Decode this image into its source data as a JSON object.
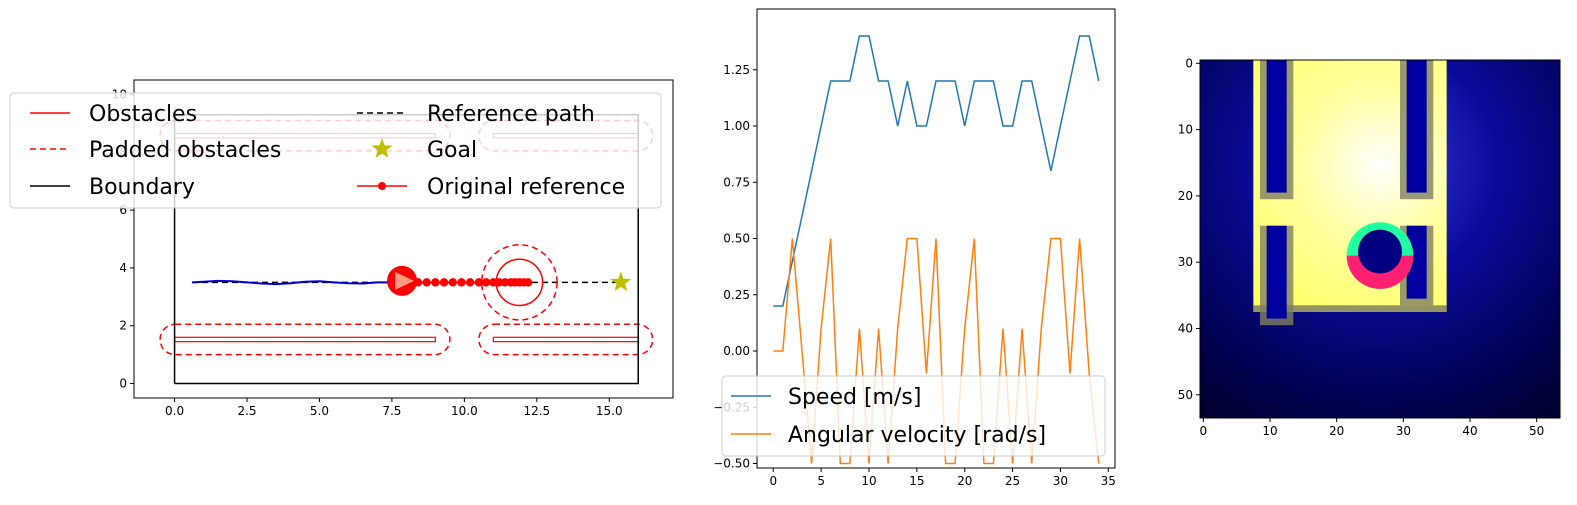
{
  "chart_data": [
    {
      "type": "line",
      "title": "",
      "xlim": [
        -1.4,
        17.2
      ],
      "ylim": [
        -0.5,
        10.5
      ],
      "x_ticks": [
        "0.0",
        "2.5",
        "5.0",
        "7.5",
        "10.0",
        "12.5",
        "15.0"
      ],
      "x_tick_values": [
        0,
        2.5,
        5,
        7.5,
        10,
        12.5,
        15
      ],
      "y_ticks": [
        "0",
        "2",
        "4",
        "6",
        "8",
        "10"
      ],
      "y_tick_values": [
        0,
        2,
        4,
        6,
        8,
        10
      ],
      "legend": {
        "placement": "top-center",
        "entries": [
          {
            "label": "Obstacles",
            "color": "#ff0000",
            "style": "solid"
          },
          {
            "label": "Padded obstacles",
            "color": "#ff0000",
            "style": "dashed"
          },
          {
            "label": "Boundary",
            "color": "#000000",
            "style": "solid"
          },
          {
            "label": "Reference path",
            "color": "#000000",
            "style": "dashed"
          },
          {
            "label": "Goal",
            "color": "#bfbf00",
            "style": "star"
          },
          {
            "label": "Original reference",
            "color": "#ff0000",
            "style": "line-dot"
          }
        ]
      },
      "boundary": {
        "x": [
          0,
          0,
          16,
          16,
          0
        ],
        "y": [
          0,
          9.3,
          9.3,
          0,
          0
        ],
        "color": "#000000"
      },
      "obstacles": [
        {
          "x0": 0,
          "x1": 9,
          "y0": 1.45,
          "y1": 1.6
        },
        {
          "x0": 11,
          "x1": 16,
          "y0": 1.45,
          "y1": 1.6
        },
        {
          "x0": 0,
          "x1": 9,
          "y0": 8.5,
          "y1": 8.65
        },
        {
          "x0": 11,
          "x1": 16,
          "y0": 8.5,
          "y1": 8.65
        }
      ],
      "padded_obstacles": [
        {
          "x0": -0.5,
          "x1": 9.5,
          "y0": 1.0,
          "y1": 2.05
        },
        {
          "x0": 10.5,
          "x1": 16.5,
          "y0": 1.0,
          "y1": 2.05
        },
        {
          "x0": -0.5,
          "x1": 9.5,
          "y0": 8.05,
          "y1": 9.1
        },
        {
          "x0": 10.5,
          "x1": 16.5,
          "y0": 8.05,
          "y1": 9.1
        }
      ],
      "reference_path": {
        "x": [
          0.6,
          15.5
        ],
        "y": [
          3.5,
          3.5
        ]
      },
      "goal": {
        "x": 15.4,
        "y": 3.5
      },
      "trajectory": {
        "color": "#0000cc",
        "x": [
          0.6,
          1.0,
          1.5,
          2.0,
          2.5,
          3.0,
          3.5,
          4.0,
          4.5,
          5.0,
          5.5,
          6.0,
          6.5,
          7.0,
          7.5
        ],
        "y": [
          3.5,
          3.52,
          3.55,
          3.54,
          3.5,
          3.46,
          3.44,
          3.47,
          3.52,
          3.54,
          3.5,
          3.47,
          3.46,
          3.5,
          3.5
        ]
      },
      "original_reference": {
        "x": [
          8.0,
          8.4,
          8.7,
          9.0,
          9.3,
          9.6,
          9.9,
          10.2,
          10.5,
          10.75,
          11.0,
          11.2,
          11.4,
          11.6,
          11.75,
          11.9,
          12.05,
          12.2
        ],
        "y": 3.5
      },
      "robot": {
        "x": 7.85,
        "y": 3.55,
        "radius": 0.5
      },
      "dynamic_obstacle": {
        "x": 11.9,
        "y": 3.5,
        "radius": 0.8,
        "padded_radius": 1.3
      }
    },
    {
      "type": "line",
      "title": "",
      "xlim": [
        -1.7,
        35.7
      ],
      "ylim": [
        -0.52,
        1.52
      ],
      "x_ticks": [
        "0",
        "5",
        "10",
        "15",
        "20",
        "25",
        "30",
        "35"
      ],
      "x_tick_values": [
        0,
        5,
        10,
        15,
        20,
        25,
        30,
        35
      ],
      "y_ticks": [
        "−0.50",
        "−0.25",
        "0.00",
        "0.25",
        "0.50",
        "0.75",
        "1.00",
        "1.25"
      ],
      "y_tick_values": [
        -0.5,
        -0.25,
        0,
        0.25,
        0.5,
        0.75,
        1.0,
        1.25
      ],
      "legend": {
        "placement": "lower-left"
      },
      "x": [
        0,
        1,
        2,
        3,
        4,
        5,
        6,
        7,
        8,
        9,
        10,
        11,
        12,
        13,
        14,
        15,
        16,
        17,
        18,
        19,
        20,
        21,
        22,
        23,
        24,
        25,
        26,
        27,
        28,
        29,
        30,
        31,
        32,
        33,
        34
      ],
      "series": [
        {
          "name": "Speed [m/s]",
          "color": "#1f77b4",
          "values": [
            0.2,
            0.2,
            0.4,
            0.6,
            0.8,
            1.0,
            1.2,
            1.2,
            1.2,
            1.4,
            1.4,
            1.2,
            1.2,
            1.0,
            1.2,
            1.0,
            1.0,
            1.2,
            1.2,
            1.2,
            1.0,
            1.2,
            1.2,
            1.2,
            1.0,
            1.0,
            1.2,
            1.2,
            1.0,
            0.8,
            1.0,
            1.2,
            1.4,
            1.4,
            1.2
          ]
        },
        {
          "name": "Angular velocity [rad/s]",
          "color": "#ff7f0e",
          "values": [
            0.0,
            0.0,
            0.5,
            0.0,
            -0.5,
            0.1,
            0.5,
            -0.5,
            -0.5,
            0.1,
            -0.5,
            0.1,
            -0.5,
            0.1,
            0.5,
            0.5,
            -0.1,
            0.5,
            -0.5,
            -0.5,
            0.1,
            0.5,
            -0.5,
            -0.5,
            0.1,
            -0.5,
            0.1,
            -0.5,
            0.1,
            0.5,
            0.5,
            -0.1,
            0.5,
            -0.1,
            -0.5
          ]
        }
      ]
    },
    {
      "type": "heatmap",
      "title": "",
      "size": [
        54,
        54
      ],
      "x_ticks": [
        "0",
        "10",
        "20",
        "30",
        "40",
        "50"
      ],
      "x_tick_values": [
        0,
        10,
        20,
        30,
        40,
        50
      ],
      "y_ticks": [
        "0",
        "10",
        "20",
        "30",
        "40",
        "50"
      ],
      "y_tick_values": [
        0,
        10,
        20,
        30,
        40,
        50
      ],
      "colors": {
        "background": "#000033",
        "field": "#ffff40",
        "wall": "#0000a0",
        "gray": "#808060",
        "teal": "#20ffa0",
        "pink": "#ff2070"
      },
      "bright_region": {
        "col0": 8,
        "col1": 37,
        "row0": 0,
        "row1": 38
      },
      "walls": [
        {
          "col0": 10,
          "col1": 13,
          "row0": 0,
          "row1": 20
        },
        {
          "col0": 31,
          "col1": 34,
          "row0": 0,
          "row1": 20
        },
        {
          "col0": 10,
          "col1": 13,
          "row0": 25,
          "row1": 39
        },
        {
          "col0": 31,
          "col1": 34,
          "row0": 25,
          "row1": 36
        }
      ],
      "blob": {
        "cx": 27,
        "cy": 29.5,
        "r_outer": 5,
        "r_inner": 3.3
      }
    }
  ],
  "legend_ax2": {
    "entries": [
      {
        "label": "Speed [m/s]",
        "color": "#1f77b4"
      },
      {
        "label": "Angular velocity [rad/s]",
        "color": "#ff7f0e"
      }
    ]
  }
}
